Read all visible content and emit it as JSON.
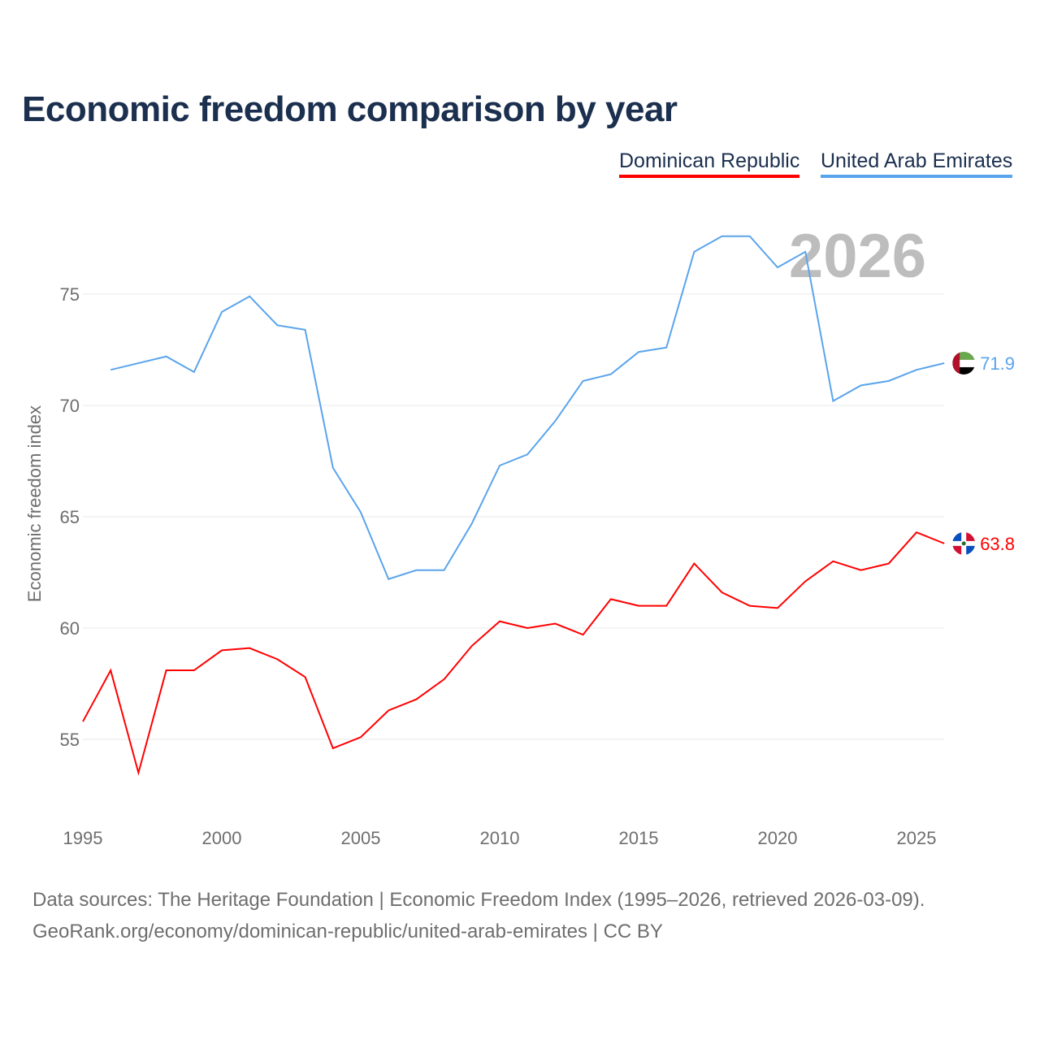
{
  "title": "Economic freedom comparison by year",
  "footer": {
    "line1": "Data sources: The Heritage Foundation | Economic Freedom Index (1995–2026, retrieved 2026-03-09).",
    "line2": "GeoRank.org/economy/dominican-republic/united-arab-emirates | CC BY"
  },
  "chart_data": {
    "type": "line",
    "title": "Economic freedom comparison by year",
    "ylabel": "Economic freedom index",
    "xlabel": "",
    "year_watermark": "2026",
    "xlim": [
      1995,
      2026
    ],
    "ylim": [
      52,
      79
    ],
    "xticks": [
      "1995",
      "2000",
      "2005",
      "2010",
      "2015",
      "2020",
      "2025"
    ],
    "yticks": [
      "55",
      "60",
      "65",
      "70",
      "75"
    ],
    "grid": true,
    "legend_position": "top-right",
    "series": [
      {
        "name": "Dominican Republic",
        "color": "#ff0000",
        "flag": "dominican-republic-flag-icon",
        "end_label": "63.8",
        "x": [
          1995,
          1996,
          1997,
          1998,
          1999,
          2000,
          2001,
          2002,
          2003,
          2004,
          2005,
          2006,
          2007,
          2008,
          2009,
          2010,
          2011,
          2012,
          2013,
          2014,
          2015,
          2016,
          2017,
          2018,
          2019,
          2020,
          2021,
          2022,
          2023,
          2024,
          2025,
          2026
        ],
        "values": [
          55.8,
          58.1,
          53.5,
          58.1,
          58.1,
          59.0,
          59.1,
          58.6,
          57.8,
          54.6,
          55.1,
          56.3,
          56.8,
          57.7,
          59.2,
          60.3,
          60.0,
          60.2,
          59.7,
          61.3,
          61.0,
          61.0,
          62.9,
          61.6,
          61.0,
          60.9,
          62.1,
          63.0,
          62.6,
          62.9,
          64.3,
          63.8
        ]
      },
      {
        "name": "United Arab Emirates",
        "color": "#5aa4ec",
        "flag": "uae-flag-icon",
        "end_label": "71.9",
        "x": [
          1996,
          1997,
          1998,
          1999,
          2000,
          2001,
          2002,
          2003,
          2004,
          2005,
          2006,
          2007,
          2008,
          2009,
          2010,
          2011,
          2012,
          2013,
          2014,
          2015,
          2016,
          2017,
          2018,
          2019,
          2020,
          2021,
          2022,
          2023,
          2024,
          2025,
          2026
        ],
        "values": [
          71.6,
          71.9,
          72.2,
          71.5,
          74.2,
          74.9,
          73.6,
          73.4,
          67.2,
          65.2,
          62.2,
          62.6,
          62.6,
          64.7,
          67.3,
          67.8,
          69.3,
          71.1,
          71.4,
          72.4,
          72.6,
          76.9,
          77.6,
          77.6,
          76.2,
          76.9,
          70.2,
          70.9,
          71.1,
          71.6,
          71.9
        ]
      }
    ]
  }
}
